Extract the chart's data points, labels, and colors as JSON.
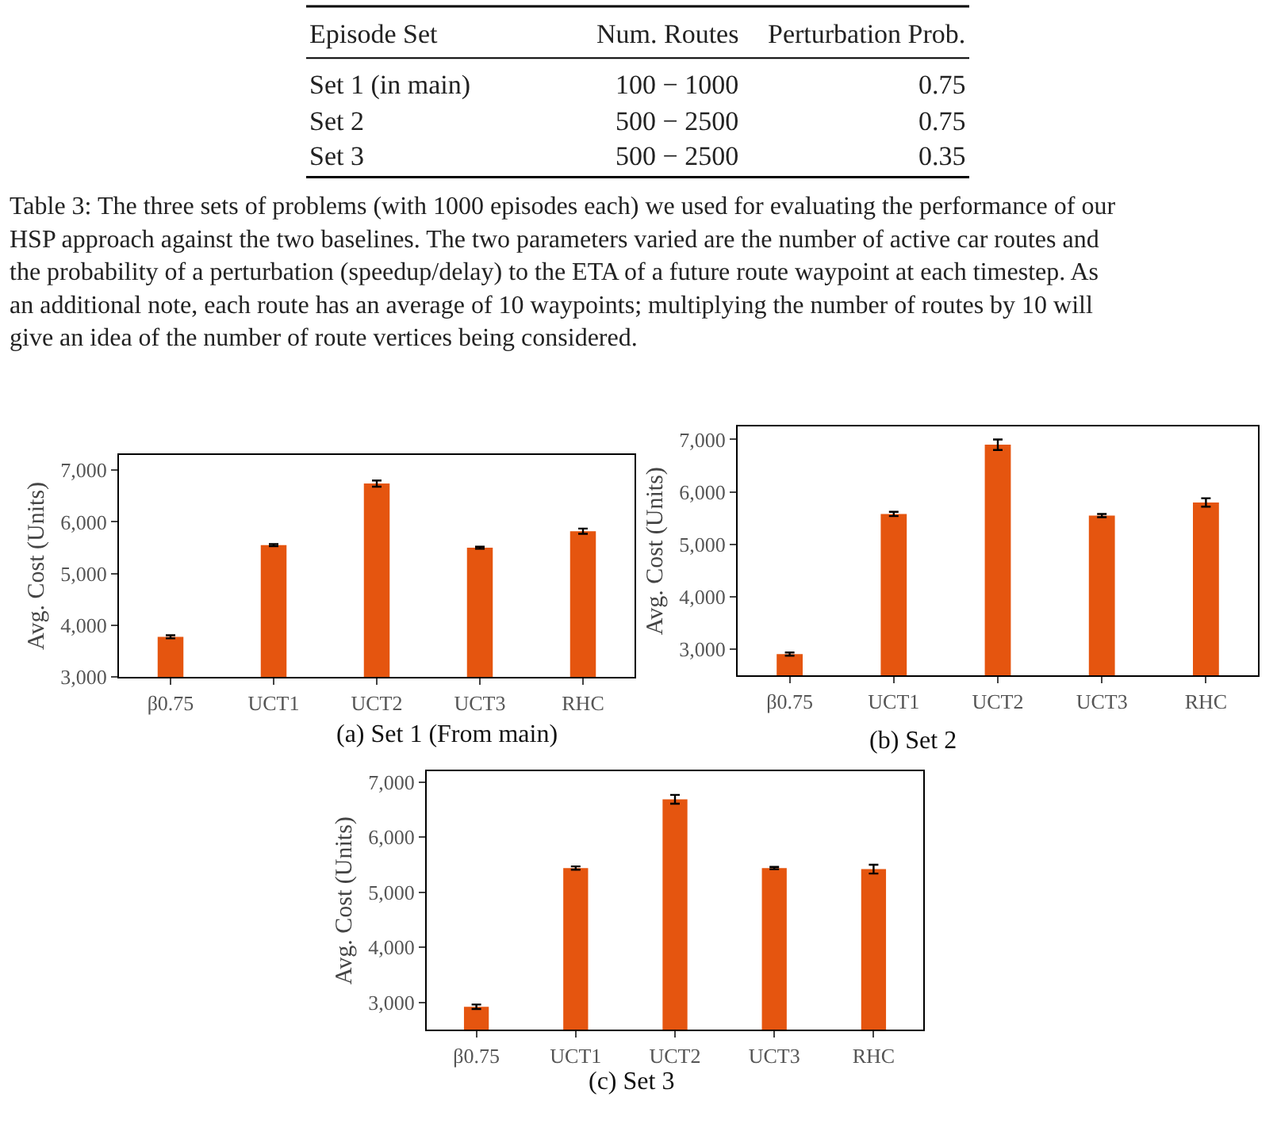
{
  "chart_data": [
    {
      "type": "other",
      "categories": [
        "Episode Set",
        "Num. Routes",
        "Perturbation Prob."
      ],
      "cell_labels": [
        [
          "Set 1 (in main)",
          "100 − 1000",
          "0.75"
        ],
        [
          "Set 2",
          "500 − 2500",
          "0.75"
        ],
        [
          "Set 3",
          "500 − 2500",
          "0.35"
        ]
      ],
      "annotations": [
        "Table 3: The three sets of problems (with 1000 episodes each) we used for evaluating the performance of our HSP approach against the two baselines. The two parameters varied are the number of active car routes and the probability of a perturbation (speedup/delay) to the ETA of a future route waypoint at each timestep. As an additional note, each route has an average of 10 waypoints; multiplying the number of routes by 10 will give an idea of the number of route vertices being considered."
      ]
    },
    {
      "type": "bar",
      "ylabel": "Avg. Cost (Units)",
      "categories": [
        "β0.75",
        "UCT1",
        "UCT2",
        "UCT3",
        "RHC"
      ],
      "values": [
        3780,
        5550,
        6740,
        5500,
        5820
      ],
      "errors": [
        30,
        20,
        60,
        20,
        50
      ],
      "color": "#e5550f",
      "ylim": [
        3000,
        7300
      ],
      "yticks": [
        {
          "value": 3000,
          "label": "3,000"
        },
        {
          "value": 4000,
          "label": "4,000"
        },
        {
          "value": 5000,
          "label": "5,000"
        },
        {
          "value": 6000,
          "label": "6,000"
        },
        {
          "value": 7000,
          "label": "7,000"
        }
      ],
      "annotations": [
        "(a) Set 1 (From main)"
      ]
    },
    {
      "type": "bar",
      "ylabel": "Avg. Cost (Units)",
      "categories": [
        "β0.75",
        "UCT1",
        "UCT2",
        "UCT3",
        "RHC"
      ],
      "values": [
        2910,
        5580,
        6900,
        5550,
        5800
      ],
      "errors": [
        30,
        40,
        100,
        30,
        80
      ],
      "color": "#e5550f",
      "ylim": [
        2500,
        7250
      ],
      "yticks": [
        {
          "value": 3000,
          "label": "3,000"
        },
        {
          "value": 4000,
          "label": "4,000"
        },
        {
          "value": 5000,
          "label": "5,000"
        },
        {
          "value": 6000,
          "label": "6,000"
        },
        {
          "value": 7000,
          "label": "7,000"
        }
      ],
      "annotations": [
        "(b) Set 2"
      ]
    },
    {
      "type": "bar",
      "ylabel": "Avg. Cost (Units)",
      "categories": [
        "β0.75",
        "UCT1",
        "UCT2",
        "UCT3",
        "RHC"
      ],
      "values": [
        2920,
        5440,
        6690,
        5440,
        5420
      ],
      "errors": [
        40,
        30,
        80,
        20,
        80
      ],
      "color": "#e5550f",
      "ylim": [
        2500,
        7200
      ],
      "yticks": [
        {
          "value": 3000,
          "label": "3,000"
        },
        {
          "value": 4000,
          "label": "4,000"
        },
        {
          "value": 5000,
          "label": "5,000"
        },
        {
          "value": 6000,
          "label": "6,000"
        },
        {
          "value": 7000,
          "label": "7,000"
        }
      ],
      "annotations": [
        "(c) Set 3"
      ]
    }
  ]
}
